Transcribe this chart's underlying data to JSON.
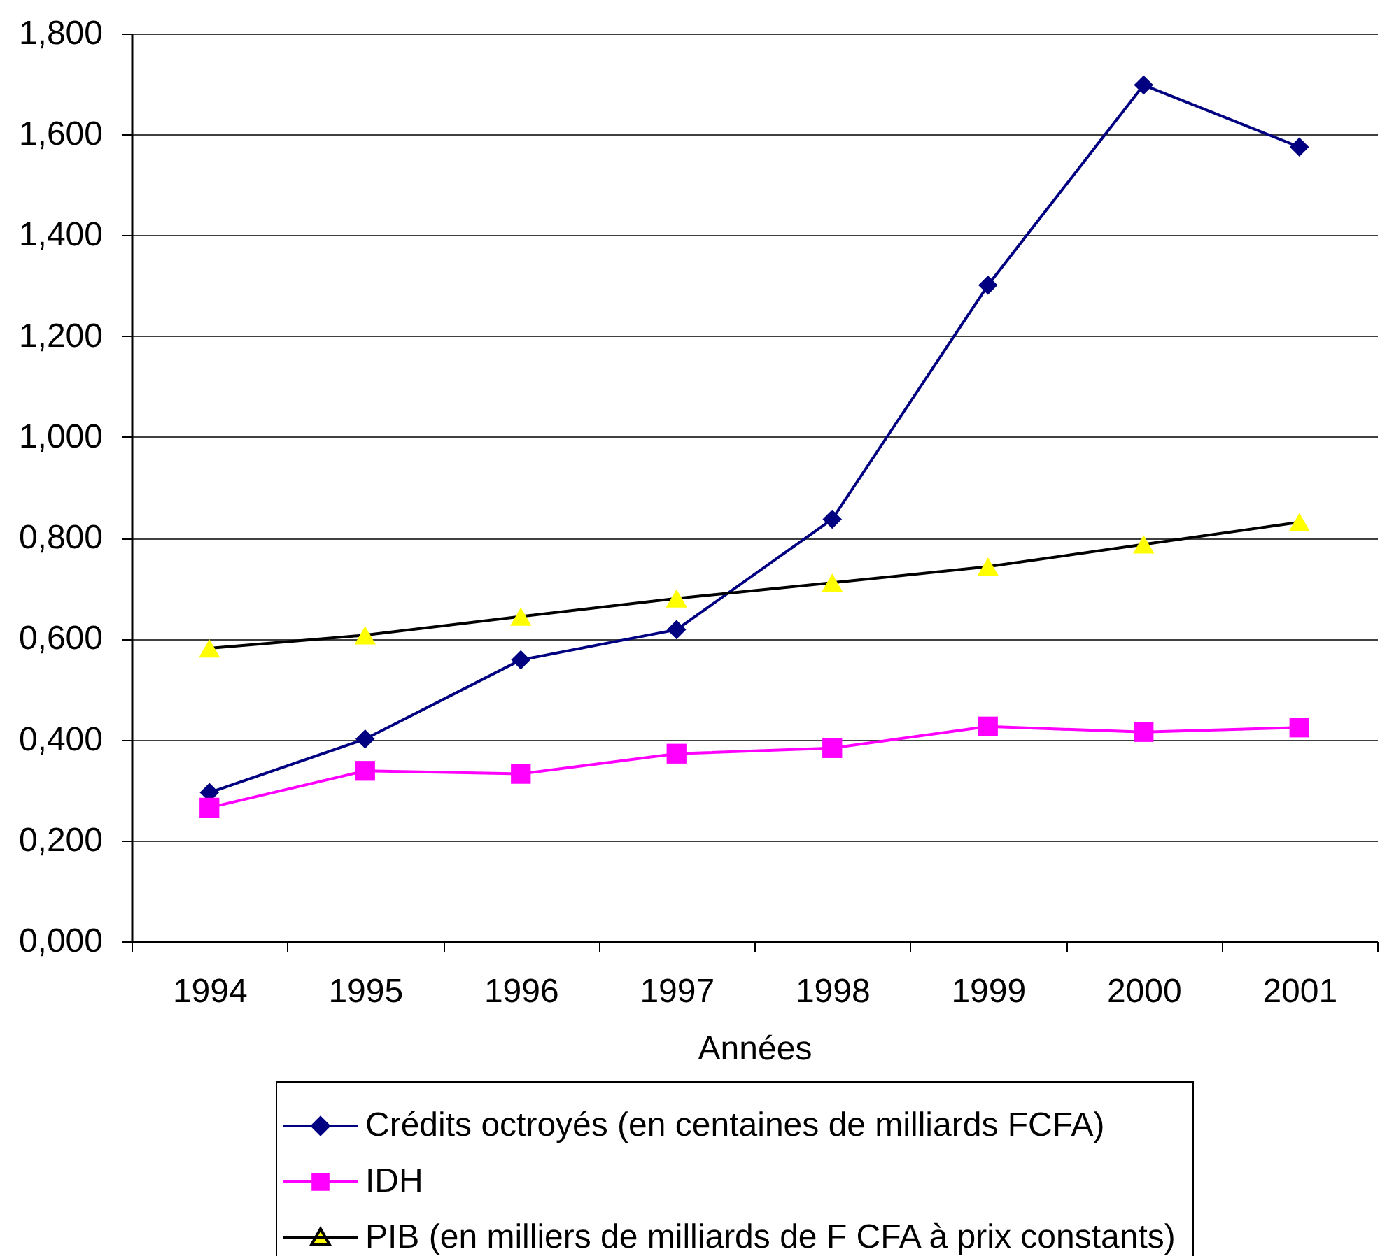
{
  "chart_data": {
    "type": "line",
    "xlabel": "Années",
    "categories": [
      "1994",
      "1995",
      "1996",
      "1997",
      "1998",
      "1999",
      "2000",
      "2001"
    ],
    "series": [
      {
        "name": "Crédits  octroyés (en centaines de milliards FCFA)",
        "color": "#000080",
        "marker": "diamond",
        "values": [
          0.295,
          0.401,
          0.558,
          0.618,
          0.837,
          1.301,
          1.698,
          1.575
        ]
      },
      {
        "name": "IDH",
        "color": "#ff00ff",
        "marker": "square",
        "values": [
          0.265,
          0.338,
          0.332,
          0.372,
          0.383,
          0.426,
          0.415,
          0.424
        ]
      },
      {
        "name": "PIB (en milliers de milliards de F CFA  à prix constants)",
        "color": "#000000",
        "colors": [
          "#ffff00",
          "#ffff00",
          "#ffff00",
          "#ffff00",
          "#ffff00",
          "#ffff00",
          "#ffff00",
          "#ffff00"
        ],
        "marker": "triangle",
        "values": [
          0.581,
          0.607,
          0.644,
          0.68,
          0.711,
          0.743,
          0.787,
          0.831
        ]
      }
    ],
    "ylim": [
      0,
      1.8
    ],
    "yticks": [
      {
        "value": 0,
        "label": "0,000"
      },
      {
        "value": 0.2,
        "label": "0,200"
      },
      {
        "value": 0.4,
        "label": "0,400"
      },
      {
        "value": 0.6,
        "label": "0,600"
      },
      {
        "value": 0.8,
        "label": "0,800"
      },
      {
        "value": 1,
        "label": "1,000"
      },
      {
        "value": 1.2,
        "label": "1,200"
      },
      {
        "value": 1.4,
        "label": "1,400"
      },
      {
        "value": 1.6,
        "label": "1,600"
      },
      {
        "value": 1.8,
        "label": "1,800"
      }
    ],
    "grid": "y",
    "legend": "bottom",
    "line_style": "solid"
  }
}
